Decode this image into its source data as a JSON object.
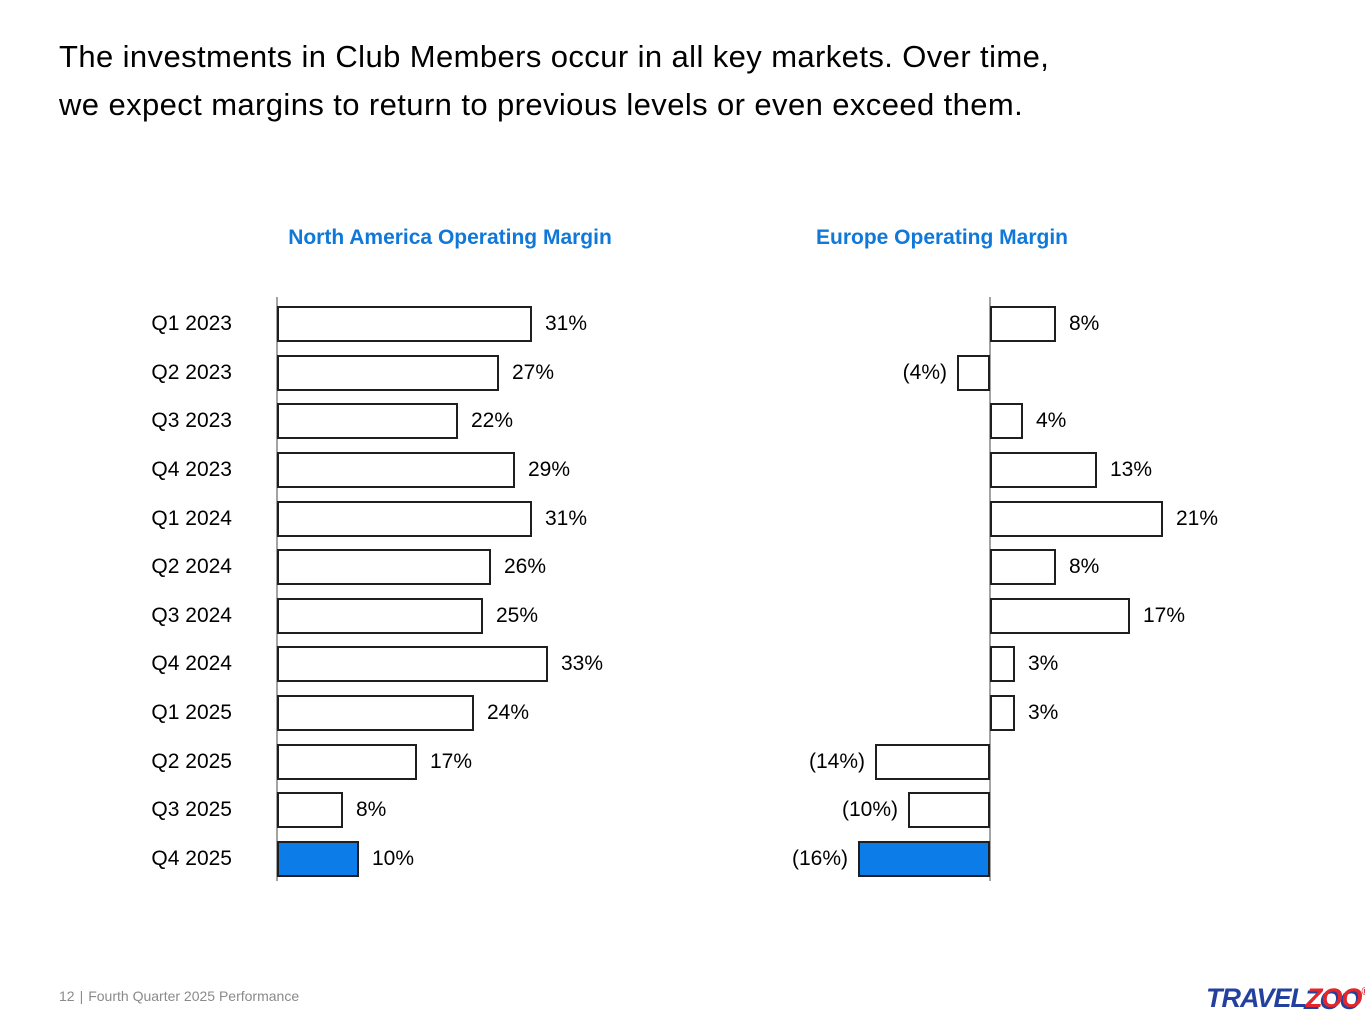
{
  "slide": {
    "title_line1": "The investments in Club Members occur in all key markets. Over time,",
    "title_line2": "we expect margins to return to previous levels or even exceed them.",
    "footer": {
      "page_number": "12",
      "separator": "|",
      "text": "Fourth Quarter 2025 Performance"
    },
    "logo": {
      "travel": "TRAVEL",
      "zoo": "ZOO",
      "registered": "®"
    }
  },
  "colors": {
    "accent_blue": "#0b7ce8",
    "chart_title_blue": "#0f78d9",
    "bar_border": "#1f1f1f",
    "axis_gray": "#a3a3a3",
    "footer_gray": "#8a8a8a",
    "logo_blue": "#23409f",
    "logo_red": "#e2262c"
  },
  "chart_data": [
    {
      "type": "bar",
      "orientation": "horizontal",
      "title": "North America Operating Margin",
      "categories": [
        "Q1 2023",
        "Q2 2023",
        "Q3 2023",
        "Q4 2023",
        "Q1 2024",
        "Q2 2024",
        "Q3 2024",
        "Q4 2024",
        "Q1 2025",
        "Q2 2025",
        "Q3 2025",
        "Q4 2025"
      ],
      "values": [
        31,
        27,
        22,
        29,
        31,
        26,
        25,
        33,
        24,
        17,
        8,
        10
      ],
      "unit": "%",
      "negative_format": "parentheses",
      "value_labels": "outside-end",
      "highlight_last_bar": true,
      "show_category_labels": true,
      "grid": false,
      "xlim": [
        0,
        35
      ]
    },
    {
      "type": "bar",
      "orientation": "horizontal",
      "title": "Europe Operating Margin",
      "categories": [
        "Q1 2023",
        "Q2 2023",
        "Q3 2023",
        "Q4 2023",
        "Q1 2024",
        "Q2 2024",
        "Q3 2024",
        "Q4 2024",
        "Q1 2025",
        "Q2 2025",
        "Q3 2025",
        "Q4 2025"
      ],
      "values": [
        8,
        -4,
        4,
        13,
        21,
        8,
        17,
        3,
        3,
        -14,
        -10,
        -16
      ],
      "unit": "%",
      "negative_format": "parentheses",
      "value_labels": "outside-end",
      "highlight_last_bar": true,
      "show_category_labels": false,
      "grid": false,
      "xlim": [
        -20,
        25
      ]
    }
  ]
}
